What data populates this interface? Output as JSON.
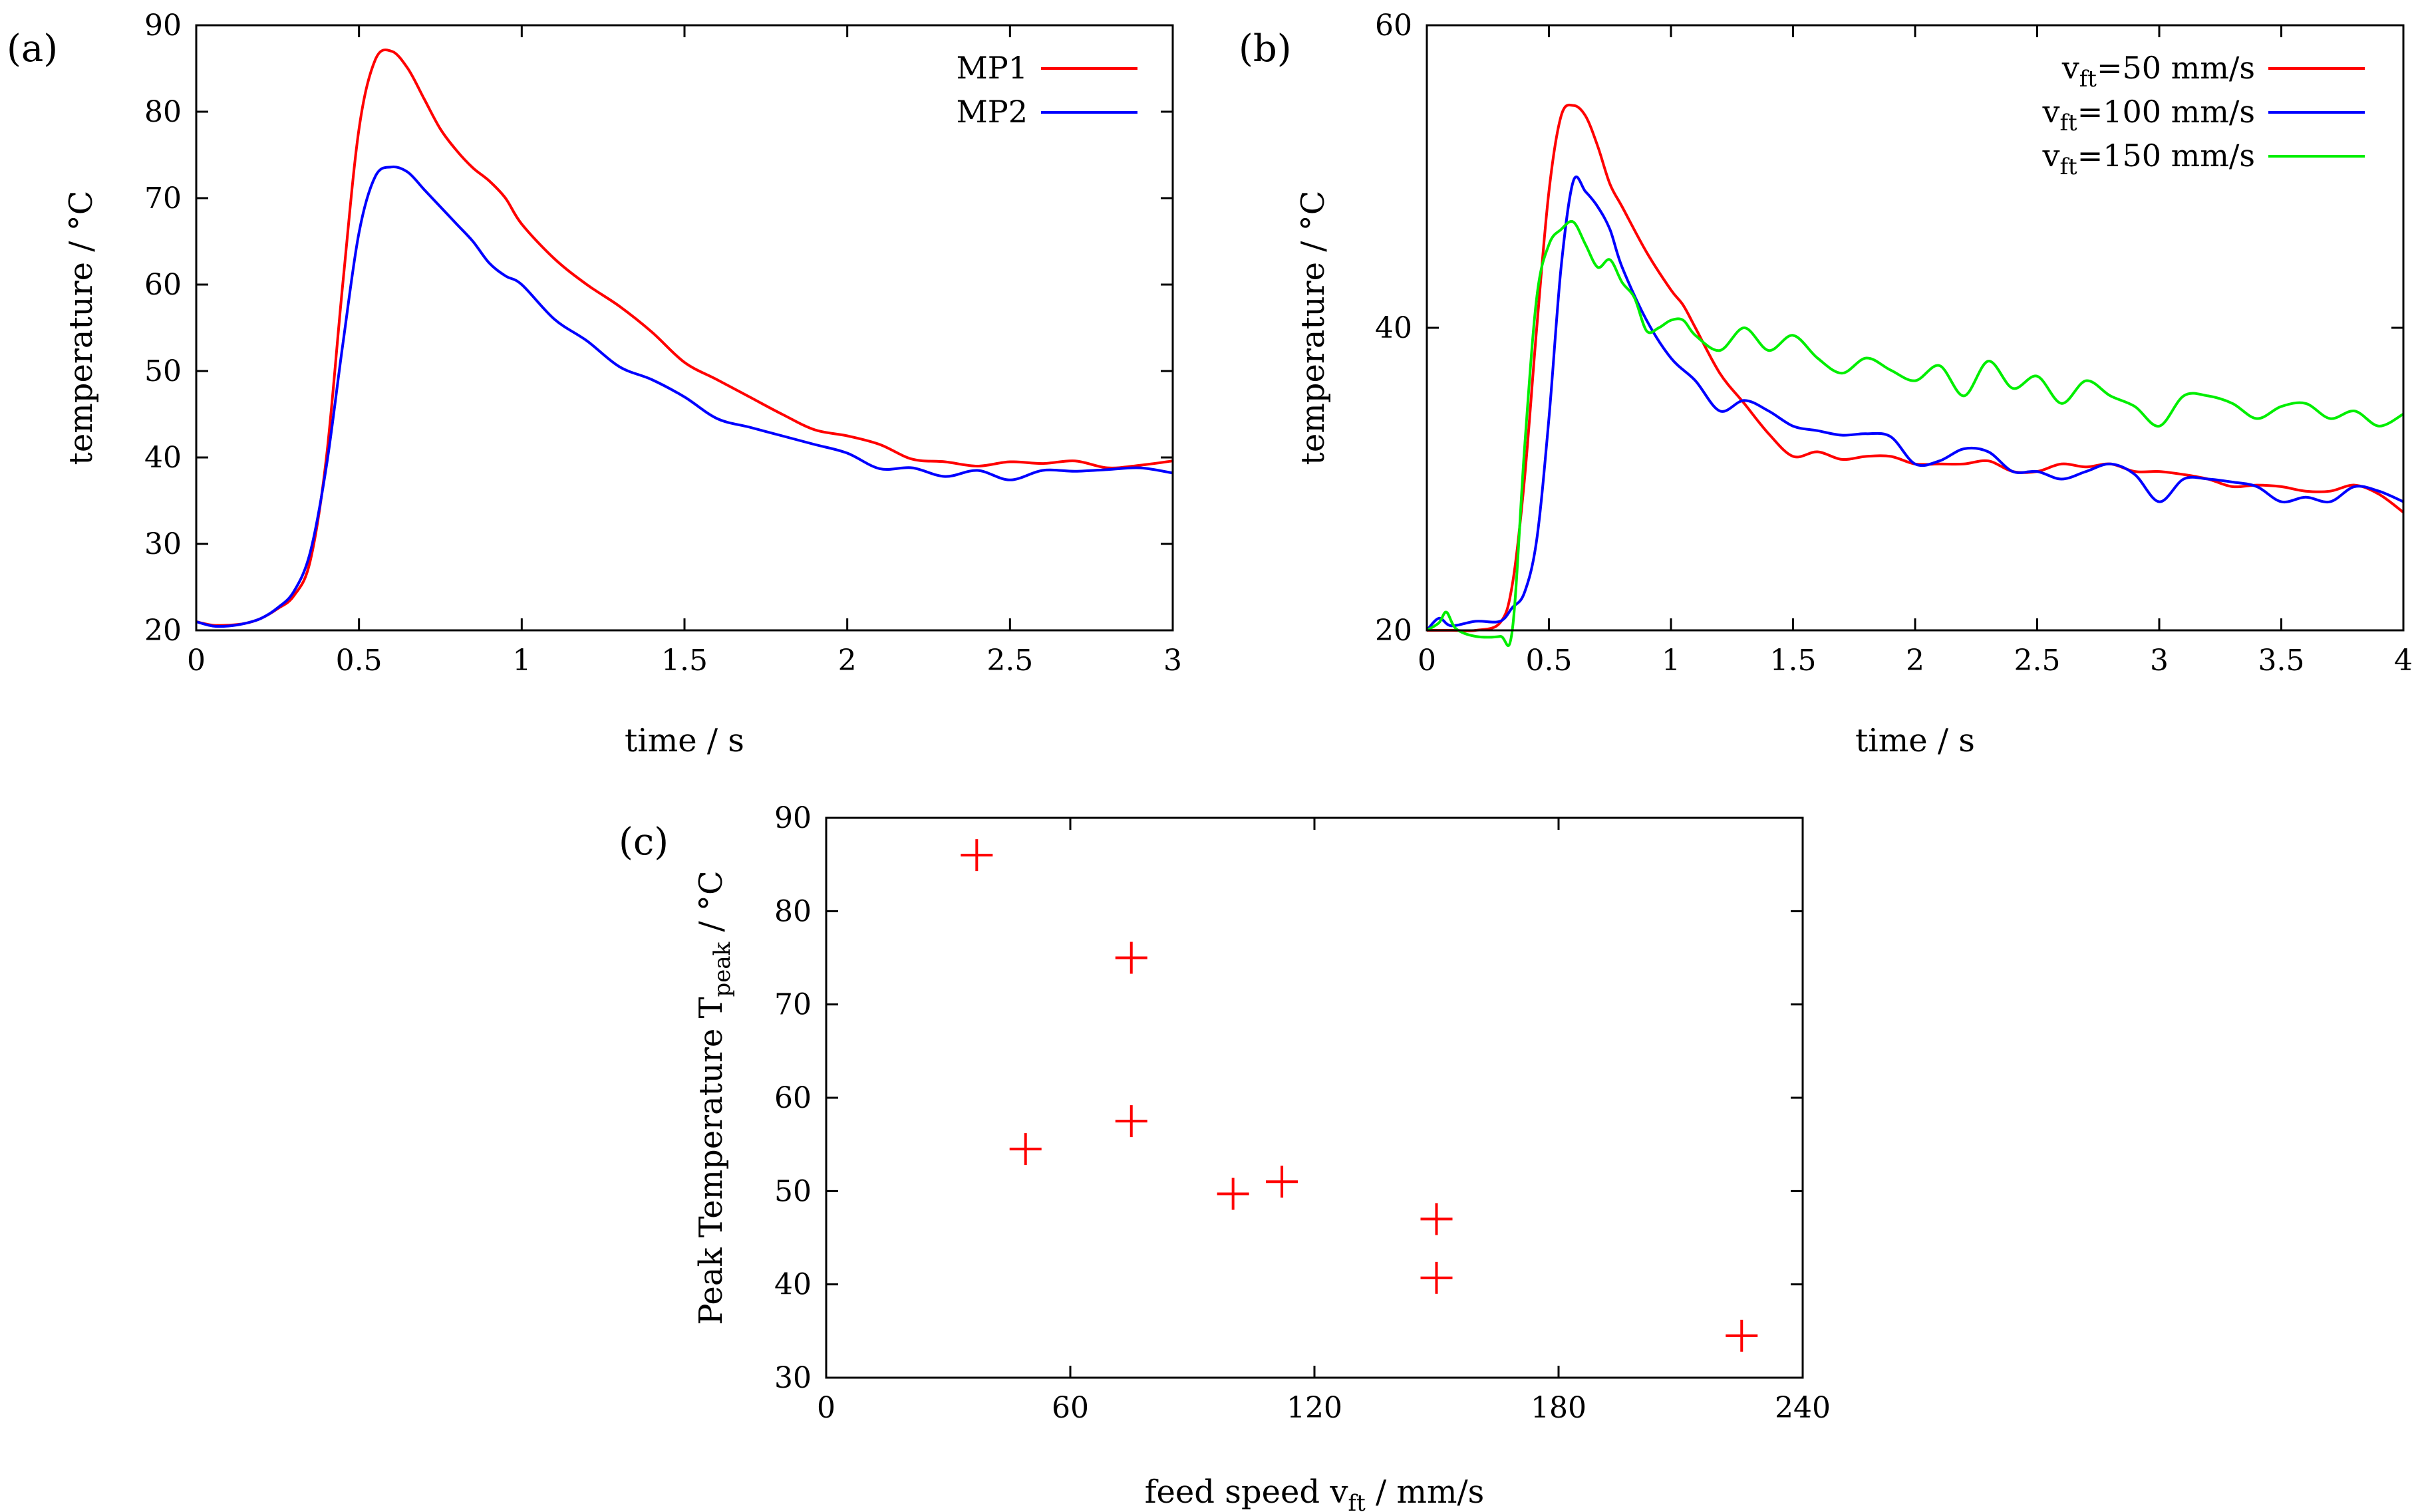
{
  "chart_data": [
    {
      "type": "line",
      "panel_label": "(a)",
      "xlabel": "time / s",
      "ylabel": "temperature / °C",
      "xlim": [
        0,
        3
      ],
      "ylim": [
        20,
        90
      ],
      "xticks": [
        "0",
        "0.5",
        "1",
        "1.5",
        "2",
        "2.5",
        "3"
      ],
      "yticks": [
        "20",
        "30",
        "40",
        "50",
        "60",
        "70",
        "80",
        "90"
      ],
      "legend_position": "top-right",
      "series": [
        {
          "name": "MP1",
          "color": "#ff0000",
          "x": [
            0,
            0.05,
            0.1,
            0.15,
            0.2,
            0.25,
            0.3,
            0.35,
            0.4,
            0.45,
            0.5,
            0.55,
            0.6,
            0.65,
            0.7,
            0.75,
            0.8,
            0.85,
            0.9,
            0.95,
            1.0,
            1.1,
            1.2,
            1.3,
            1.4,
            1.5,
            1.6,
            1.7,
            1.8,
            1.9,
            2.0,
            2.1,
            2.2,
            2.3,
            2.4,
            2.5,
            2.6,
            2.7,
            2.8,
            2.9,
            3.0
          ],
          "y": [
            21,
            20.6,
            20.6,
            20.8,
            21.4,
            22.5,
            24,
            28,
            40,
            60,
            78,
            86,
            87,
            85,
            81.5,
            78,
            75.5,
            73.5,
            72,
            70,
            67,
            63,
            60,
            57.5,
            54.5,
            51,
            49,
            47,
            45,
            43.2,
            42.5,
            41.5,
            39.8,
            39.5,
            39,
            39.5,
            39.3,
            39.6,
            38.8,
            39.1,
            39.6
          ]
        },
        {
          "name": "MP2",
          "color": "#0000ff",
          "x": [
            0,
            0.05,
            0.1,
            0.15,
            0.2,
            0.25,
            0.3,
            0.35,
            0.4,
            0.45,
            0.5,
            0.55,
            0.6,
            0.65,
            0.7,
            0.75,
            0.8,
            0.85,
            0.9,
            0.95,
            1.0,
            1.1,
            1.2,
            1.3,
            1.4,
            1.5,
            1.6,
            1.7,
            1.8,
            1.9,
            2.0,
            2.1,
            2.2,
            2.3,
            2.4,
            2.5,
            2.6,
            2.7,
            2.8,
            2.9,
            3.0
          ],
          "y": [
            21,
            20.5,
            20.5,
            20.8,
            21.4,
            22.6,
            24.5,
            29,
            39,
            53,
            66,
            72.5,
            73.6,
            73,
            71,
            69,
            67,
            65,
            62.5,
            61,
            60,
            56,
            53.5,
            50.5,
            49,
            47,
            44.5,
            43.5,
            42.5,
            41.5,
            40.5,
            38.7,
            38.8,
            37.8,
            38.5,
            37.4,
            38.5,
            38.4,
            38.6,
            38.8,
            38.2
          ]
        }
      ]
    },
    {
      "type": "line",
      "panel_label": "(b)",
      "xlabel": "time / s",
      "ylabel": "temperature / °C",
      "xlim": [
        0,
        4
      ],
      "ylim": [
        20,
        60
      ],
      "xticks": [
        "0",
        "0.5",
        "1",
        "1.5",
        "2",
        "2.5",
        "3",
        "3.5",
        "4"
      ],
      "yticks": [
        "20",
        "40",
        "60"
      ],
      "legend_position": "top-right",
      "series": [
        {
          "name": "v_ft=50 mm/s",
          "name_parts": [
            "v",
            "ft",
            "=50 mm/s"
          ],
          "color": "#ff0000",
          "x": [
            0,
            0.1,
            0.2,
            0.3,
            0.35,
            0.4,
            0.45,
            0.5,
            0.55,
            0.6,
            0.65,
            0.7,
            0.75,
            0.8,
            0.9,
            1.0,
            1.05,
            1.1,
            1.2,
            1.3,
            1.4,
            1.5,
            1.6,
            1.7,
            1.8,
            1.9,
            2.0,
            2.1,
            2.2,
            2.3,
            2.4,
            2.5,
            2.6,
            2.7,
            2.8,
            2.9,
            3.0,
            3.1,
            3.2,
            3.3,
            3.4,
            3.5,
            3.6,
            3.7,
            3.8,
            3.9,
            4.0
          ],
          "y": [
            20,
            20,
            20,
            20.5,
            23,
            30,
            40,
            49,
            54,
            54.7,
            54,
            52,
            49.5,
            48,
            45,
            42.5,
            41.5,
            40,
            37,
            35,
            33,
            31.5,
            31.8,
            31.3,
            31.5,
            31.5,
            31,
            31,
            31,
            31.2,
            30.5,
            30.5,
            31,
            30.8,
            31,
            30.5,
            30.5,
            30.3,
            30,
            29.5,
            29.6,
            29.5,
            29.2,
            29.2,
            29.6,
            29,
            27.8
          ]
        },
        {
          "name": "v_ft=100 mm/s",
          "name_parts": [
            "v",
            "ft",
            "=100 mm/s"
          ],
          "color": "#0000ff",
          "x": [
            0,
            0.05,
            0.1,
            0.2,
            0.3,
            0.35,
            0.4,
            0.45,
            0.5,
            0.55,
            0.6,
            0.65,
            0.7,
            0.75,
            0.8,
            0.9,
            1.0,
            1.1,
            1.2,
            1.3,
            1.4,
            1.5,
            1.6,
            1.7,
            1.8,
            1.9,
            2.0,
            2.1,
            2.2,
            2.3,
            2.4,
            2.5,
            2.6,
            2.7,
            2.8,
            2.9,
            3.0,
            3.1,
            3.2,
            3.3,
            3.4,
            3.5,
            3.6,
            3.7,
            3.8,
            3.9,
            4.0
          ],
          "y": [
            20,
            20.8,
            20.3,
            20.6,
            20.6,
            21.5,
            22.5,
            26,
            34,
            44,
            49.7,
            49,
            48,
            46.5,
            44,
            40.5,
            38,
            36.5,
            34.5,
            35.2,
            34.5,
            33.5,
            33.2,
            32.9,
            33,
            32.8,
            31,
            31.2,
            32,
            31.8,
            30.5,
            30.5,
            30,
            30.5,
            31,
            30.3,
            28.5,
            30,
            30,
            29.8,
            29.5,
            28.5,
            28.8,
            28.5,
            29.5,
            29.2,
            28.5
          ]
        },
        {
          "name": "v_ft=150 mm/s",
          "name_parts": [
            "v",
            "ft",
            "=150 mm/s"
          ],
          "color": "#00ee00",
          "x": [
            0,
            0.05,
            0.08,
            0.12,
            0.2,
            0.3,
            0.35,
            0.4,
            0.45,
            0.5,
            0.55,
            0.6,
            0.65,
            0.7,
            0.75,
            0.8,
            0.85,
            0.9,
            0.95,
            1.0,
            1.05,
            1.1,
            1.2,
            1.3,
            1.4,
            1.5,
            1.6,
            1.7,
            1.8,
            1.9,
            2.0,
            2.1,
            2.2,
            2.3,
            2.4,
            2.5,
            2.6,
            2.7,
            2.8,
            2.9,
            3.0,
            3.1,
            3.2,
            3.3,
            3.4,
            3.5,
            3.6,
            3.7,
            3.8,
            3.9,
            4.0
          ],
          "y": [
            20,
            20.5,
            21.2,
            20.1,
            19.6,
            19.6,
            20,
            32,
            42,
            45.5,
            46.5,
            47,
            45.5,
            44,
            44.5,
            43,
            42,
            39.8,
            40,
            40.5,
            40.5,
            39.5,
            38.5,
            40,
            38.5,
            39.5,
            38,
            37,
            38,
            37.2,
            36.5,
            37.5,
            35.5,
            37.8,
            36,
            36.8,
            35,
            36.5,
            35.5,
            34.8,
            33.5,
            35.5,
            35.5,
            35,
            34,
            34.8,
            35,
            34,
            34.5,
            33.5,
            34.3
          ]
        }
      ]
    },
    {
      "type": "scatter",
      "panel_label": "(c)",
      "xlabel": "feed speed v_ft / mm/s",
      "xlabel_parts": [
        "feed speed v",
        "ft",
        " / mm/s"
      ],
      "ylabel": "Peak Temperature T_peak / °C",
      "ylabel_parts": [
        "Peak Temperature T",
        "peak",
        " / °C"
      ],
      "xlim": [
        0,
        240
      ],
      "ylim": [
        30,
        90
      ],
      "xticks": [
        "0",
        "60",
        "120",
        "180",
        "240"
      ],
      "yticks": [
        "30",
        "40",
        "50",
        "60",
        "70",
        "80",
        "90"
      ],
      "marker": "+",
      "color": "#ff0000",
      "points": [
        {
          "x": 37,
          "y": 86
        },
        {
          "x": 75,
          "y": 75
        },
        {
          "x": 75,
          "y": 57.5
        },
        {
          "x": 49,
          "y": 54.5
        },
        {
          "x": 100,
          "y": 49.7
        },
        {
          "x": 112,
          "y": 51
        },
        {
          "x": 150,
          "y": 47
        },
        {
          "x": 150,
          "y": 40.7
        },
        {
          "x": 225,
          "y": 34.5
        }
      ]
    }
  ]
}
